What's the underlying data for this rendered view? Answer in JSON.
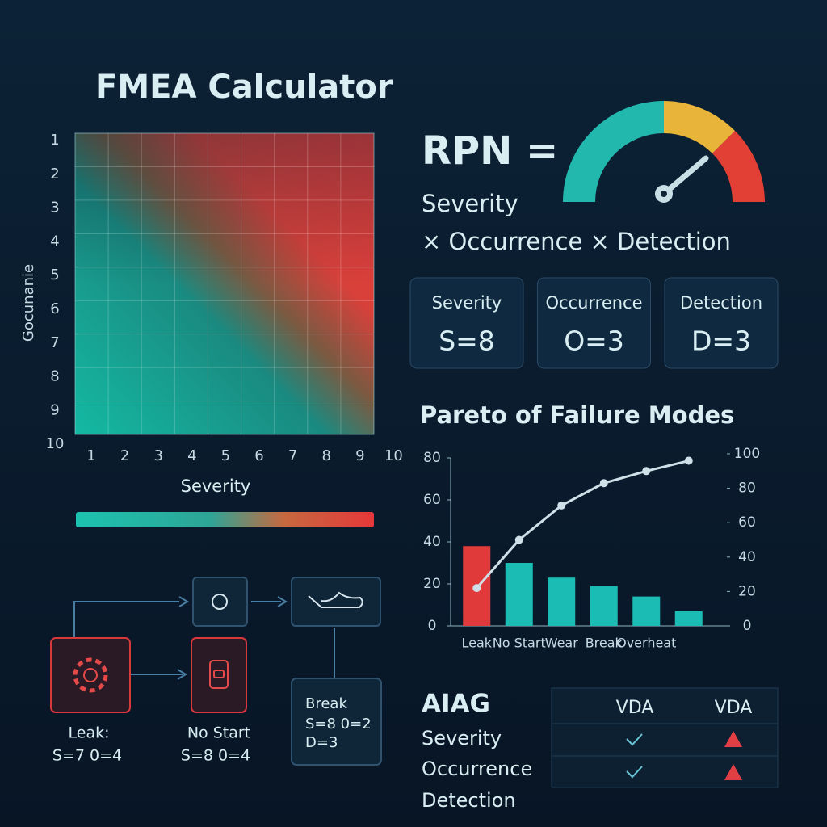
{
  "title": "FMEA Calculator",
  "heatmap": {
    "y_label": "Gocunanie",
    "x_label": "Severity",
    "y_ticks": [
      1,
      2,
      3,
      4,
      5,
      6,
      7,
      8,
      9,
      10
    ],
    "x_ticks": [
      1,
      2,
      3,
      4,
      5,
      6,
      7,
      8,
      9,
      10
    ]
  },
  "formula": {
    "lhs": "RPN =",
    "line1": "Severity",
    "line2": "× Occurrence × Detection"
  },
  "cards": [
    {
      "label": "Severity",
      "value": "S=8"
    },
    {
      "label": "Occurrence",
      "value": "O=3"
    },
    {
      "label": "Detection",
      "value": "D=3"
    }
  ],
  "chart_data": {
    "type": "pareto",
    "title": "Pareto of Failure Modes",
    "categories": [
      "Leak",
      "No Start",
      "Wear",
      "Break",
      "Overheat",
      null
    ],
    "series": [
      {
        "type": "bar",
        "colors": [
          "#e03a3a",
          "#1bbcb4",
          "#1bbcb4",
          "#1bbcb4",
          "#1bbcb4",
          "#1bbcb4"
        ],
        "values": [
          38,
          30,
          23,
          19,
          14,
          7
        ]
      },
      {
        "type": "line",
        "axis": "y2",
        "color": "#cfe0e8",
        "values": [
          22,
          50,
          70,
          83,
          90,
          96
        ]
      }
    ],
    "ylim": [
      0,
      80
    ],
    "yticks": [
      0,
      20,
      40,
      60,
      80
    ],
    "y2lim": [
      0,
      100
    ],
    "y2ticks": [
      0,
      20,
      40,
      60,
      80,
      100
    ]
  },
  "flow": {
    "nodes": [
      {
        "label": "Leak:",
        "detail": "S=7 0=4"
      },
      {
        "label": "No Start",
        "detail": "S=8 0=4"
      },
      {
        "label": "Break",
        "detail": [
          "S=8 0=2",
          "D=3"
        ]
      }
    ]
  },
  "table": {
    "title": "AIAG",
    "columns": [
      "VDA",
      "VDA"
    ],
    "rows": [
      "Severity",
      "Occurrence",
      "Detection"
    ]
  }
}
